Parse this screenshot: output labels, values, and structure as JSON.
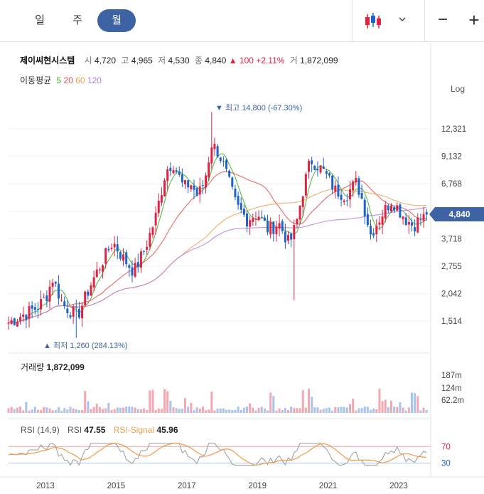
{
  "tabs": [
    {
      "label": "일",
      "active": false
    },
    {
      "label": "주",
      "active": false
    },
    {
      "label": "월",
      "active": true
    }
  ],
  "toolbar": {
    "chart_type_icon": "candlestick-icon",
    "dropdown_icon": "chevron-down-icon",
    "zoom_out": "−",
    "zoom_in": "+"
  },
  "stock": {
    "name": "제이씨현시스템",
    "open_label": "시",
    "open": "4,720",
    "high_label": "고",
    "high": "4,965",
    "low_label": "저",
    "low": "4,530",
    "close_label": "종",
    "close": "4,840",
    "change": "▲ 100",
    "change_pct": "+2.11%",
    "volume_label": "거",
    "volume": "1,872,099"
  },
  "ma_legend": {
    "label": "이동평균",
    "periods": [
      "5",
      "20",
      "60",
      "120"
    ],
    "colors": [
      "#3fae2a",
      "#e84f4f",
      "#f0a050",
      "#b77ddb"
    ]
  },
  "scale_label": "Log",
  "current_price_tag": "4,840",
  "volume_panel": {
    "title": "거래량",
    "value": "1,872,099",
    "ticks": [
      "187m",
      "124m",
      "62.2m"
    ]
  },
  "rsi_panel": {
    "title": "RSI (14,9)",
    "rsi_label": "RSI",
    "rsi_value": "47.55",
    "signal_label": "RSI-Signal",
    "signal_value": "45.96",
    "levels": [
      "70",
      "30"
    ]
  },
  "colors": {
    "up": "#e12343",
    "down": "#1e64c8",
    "accent": "#3d63a5",
    "vol_up": "#f4a7b0",
    "vol_down": "#a8c4ec",
    "rsi": "#999999",
    "signal": "#f0a050"
  },
  "chart_data": {
    "type": "candlestick",
    "scale": "log",
    "yticks": [
      12321,
      9132,
      6768,
      5017,
      3718,
      2755,
      2042,
      1514
    ],
    "ytick_labels": [
      "12,321",
      "9,132",
      "6,768",
      "",
      "3,718",
      "2,755",
      "2,042",
      "1,514"
    ],
    "x_labels": [
      "2013",
      "2015",
      "2017",
      "2019",
      "2021",
      "2023"
    ],
    "max_annotation": "최고 14,800 (-67.30%)",
    "min_annotation": "최저 1,260 (284.13%)",
    "max_value": 14800,
    "min_value": 1260,
    "x_start": 2012.75,
    "x_end": 2023.85,
    "rsi_ylim": [
      0,
      100
    ],
    "key_points": [
      [
        2012.75,
        1750
      ],
      [
        2013.0,
        1950
      ],
      [
        2013.2,
        2400
      ],
      [
        2013.5,
        1800
      ],
      [
        2013.9,
        1600
      ],
      [
        2014.3,
        2300
      ],
      [
        2014.6,
        2900
      ],
      [
        2014.9,
        3600
      ],
      [
        2015.2,
        3000
      ],
      [
        2015.5,
        2600
      ],
      [
        2015.8,
        3300
      ],
      [
        2016.1,
        4600
      ],
      [
        2016.4,
        7800
      ],
      [
        2016.6,
        8600
      ],
      [
        2016.9,
        6500
      ],
      [
        2017.1,
        6800
      ],
      [
        2017.3,
        5900
      ],
      [
        2017.5,
        7000
      ],
      [
        2017.7,
        10500
      ],
      [
        2017.9,
        9500
      ],
      [
        2018.1,
        7700
      ],
      [
        2018.4,
        5300
      ],
      [
        2018.7,
        4600
      ],
      [
        2019.0,
        4900
      ],
      [
        2019.3,
        4100
      ],
      [
        2019.6,
        4400
      ],
      [
        2019.9,
        3500
      ],
      [
        2020.1,
        4400
      ],
      [
        2020.3,
        6500
      ],
      [
        2020.5,
        8800
      ],
      [
        2020.7,
        8300
      ],
      [
        2020.9,
        7600
      ],
      [
        2021.2,
        6300
      ],
      [
        2021.5,
        6000
      ],
      [
        2021.8,
        6900
      ],
      [
        2022.0,
        5400
      ],
      [
        2022.2,
        3900
      ],
      [
        2022.5,
        4800
      ],
      [
        2022.8,
        5700
      ],
      [
        2023.0,
        5100
      ],
      [
        2023.2,
        4600
      ],
      [
        2023.4,
        4300
      ],
      [
        2023.6,
        4600
      ],
      [
        2023.85,
        4840
      ]
    ]
  }
}
